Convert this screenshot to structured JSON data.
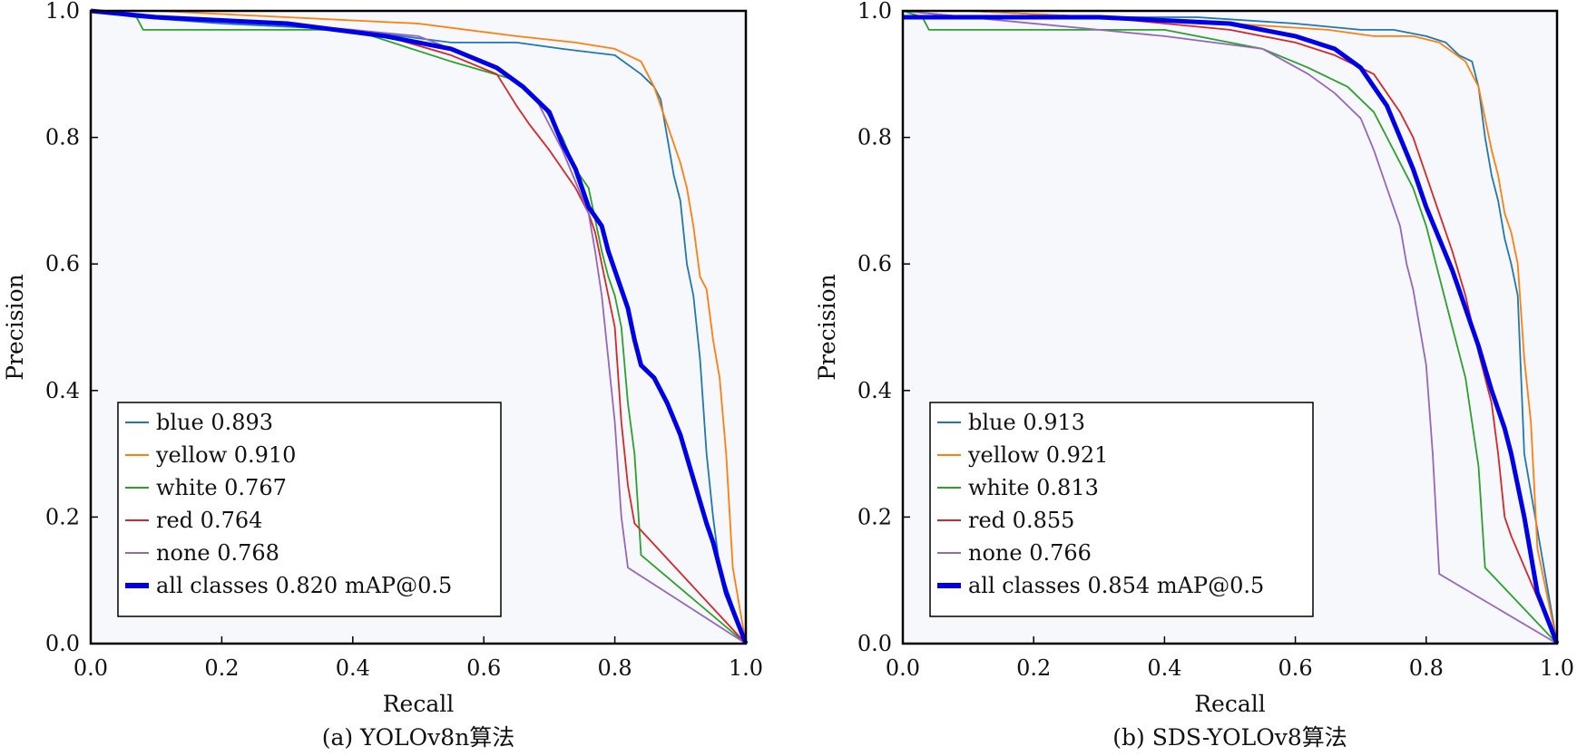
{
  "chart_data": [
    {
      "type": "line",
      "caption": "(a) YOLOv8n算法",
      "xlabel": "Recall",
      "ylabel": "Precision",
      "xlim": [
        0.0,
        1.0
      ],
      "ylim": [
        0.0,
        1.0
      ],
      "xticks": [
        "0.0",
        "0.2",
        "0.4",
        "0.6",
        "0.8",
        "1.0"
      ],
      "yticks": [
        "0.0",
        "0.2",
        "0.4",
        "0.6",
        "0.8",
        "1.0"
      ],
      "grid": false,
      "legend_position": "bottom-left",
      "series": [
        {
          "name": "blue 0.893",
          "color": "#1f77b4",
          "x": [
            0.0,
            0.07,
            0.2,
            0.4,
            0.55,
            0.65,
            0.72,
            0.8,
            0.84,
            0.86,
            0.87,
            0.88,
            0.89,
            0.9,
            0.91,
            0.92,
            0.93,
            0.94,
            0.95,
            0.96,
            1.0
          ],
          "y": [
            1.0,
            0.99,
            0.98,
            0.97,
            0.95,
            0.95,
            0.94,
            0.93,
            0.9,
            0.88,
            0.86,
            0.8,
            0.74,
            0.7,
            0.6,
            0.55,
            0.45,
            0.3,
            0.2,
            0.12,
            0.0
          ]
        },
        {
          "name": "yellow 0.910",
          "color": "#ff7f0e",
          "x": [
            0.0,
            0.1,
            0.3,
            0.5,
            0.65,
            0.74,
            0.8,
            0.84,
            0.86,
            0.88,
            0.9,
            0.91,
            0.92,
            0.93,
            0.94,
            0.95,
            0.96,
            0.97,
            0.98,
            1.0
          ],
          "y": [
            1.0,
            1.0,
            0.99,
            0.98,
            0.96,
            0.95,
            0.94,
            0.92,
            0.88,
            0.82,
            0.76,
            0.72,
            0.66,
            0.58,
            0.56,
            0.48,
            0.42,
            0.3,
            0.12,
            0.0
          ]
        },
        {
          "name": "white 0.767",
          "color": "#2ca02c",
          "x": [
            0.0,
            0.07,
            0.08,
            0.4,
            0.55,
            0.65,
            0.69,
            0.72,
            0.74,
            0.76,
            0.78,
            0.79,
            0.8,
            0.81,
            0.82,
            0.83,
            0.84,
            1.0
          ],
          "y": [
            1.0,
            0.99,
            0.97,
            0.97,
            0.92,
            0.89,
            0.85,
            0.8,
            0.75,
            0.72,
            0.62,
            0.58,
            0.55,
            0.5,
            0.38,
            0.3,
            0.14,
            0.0
          ]
        },
        {
          "name": "red 0.764",
          "color": "#d62728",
          "x": [
            0.0,
            0.1,
            0.3,
            0.45,
            0.55,
            0.62,
            0.65,
            0.67,
            0.7,
            0.72,
            0.74,
            0.76,
            0.77,
            0.78,
            0.8,
            0.81,
            0.82,
            0.83,
            1.0
          ],
          "y": [
            1.0,
            0.99,
            0.98,
            0.96,
            0.93,
            0.9,
            0.85,
            0.82,
            0.78,
            0.75,
            0.72,
            0.68,
            0.65,
            0.6,
            0.5,
            0.35,
            0.25,
            0.19,
            0.0
          ]
        },
        {
          "name": "none 0.768",
          "color": "#9467bd",
          "x": [
            0.0,
            0.1,
            0.3,
            0.5,
            0.6,
            0.65,
            0.68,
            0.72,
            0.74,
            0.76,
            0.77,
            0.78,
            0.79,
            0.8,
            0.81,
            0.82,
            1.0
          ],
          "y": [
            1.0,
            0.99,
            0.98,
            0.96,
            0.92,
            0.89,
            0.86,
            0.78,
            0.73,
            0.68,
            0.62,
            0.55,
            0.45,
            0.35,
            0.2,
            0.12,
            0.0
          ]
        },
        {
          "name": "all classes 0.820 mAP@0.5",
          "color": "#0000e6",
          "thick": true,
          "x": [
            0.0,
            0.1,
            0.3,
            0.45,
            0.55,
            0.62,
            0.66,
            0.7,
            0.72,
            0.74,
            0.76,
            0.78,
            0.79,
            0.8,
            0.82,
            0.83,
            0.84,
            0.86,
            0.88,
            0.9,
            0.92,
            0.94,
            0.95,
            0.96,
            0.97,
            1.0
          ],
          "y": [
            1.0,
            0.99,
            0.98,
            0.96,
            0.94,
            0.91,
            0.88,
            0.84,
            0.79,
            0.75,
            0.69,
            0.66,
            0.62,
            0.59,
            0.53,
            0.48,
            0.44,
            0.42,
            0.38,
            0.33,
            0.26,
            0.19,
            0.16,
            0.12,
            0.08,
            0.0
          ]
        }
      ]
    },
    {
      "type": "line",
      "caption": "(b) SDS-YOLOv8算法",
      "xlabel": "Recall",
      "ylabel": "Precision",
      "xlim": [
        0.0,
        1.0
      ],
      "ylim": [
        0.0,
        1.0
      ],
      "xticks": [
        "0.0",
        "0.2",
        "0.4",
        "0.6",
        "0.8",
        "1.0"
      ],
      "yticks": [
        "0.0",
        "0.2",
        "0.4",
        "0.6",
        "0.8",
        "1.0"
      ],
      "grid": false,
      "legend_position": "bottom-left",
      "series": [
        {
          "name": "blue 0.913",
          "color": "#1f77b4",
          "x": [
            0.0,
            0.1,
            0.3,
            0.45,
            0.6,
            0.7,
            0.75,
            0.8,
            0.83,
            0.85,
            0.87,
            0.88,
            0.89,
            0.9,
            0.91,
            0.92,
            0.93,
            0.94,
            0.95,
            1.0
          ],
          "y": [
            1.0,
            1.0,
            0.99,
            0.99,
            0.98,
            0.97,
            0.97,
            0.96,
            0.95,
            0.93,
            0.92,
            0.88,
            0.8,
            0.74,
            0.7,
            0.64,
            0.6,
            0.55,
            0.3,
            0.0
          ]
        },
        {
          "name": "yellow 0.921",
          "color": "#ff7f0e",
          "x": [
            0.0,
            0.1,
            0.3,
            0.5,
            0.65,
            0.72,
            0.78,
            0.82,
            0.86,
            0.88,
            0.89,
            0.9,
            0.91,
            0.92,
            0.93,
            0.94,
            0.95,
            0.96,
            0.97,
            1.0
          ],
          "y": [
            1.0,
            1.0,
            0.99,
            0.98,
            0.97,
            0.96,
            0.96,
            0.95,
            0.92,
            0.88,
            0.83,
            0.78,
            0.74,
            0.68,
            0.65,
            0.6,
            0.45,
            0.35,
            0.15,
            0.0
          ]
        },
        {
          "name": "white 0.813",
          "color": "#2ca02c",
          "x": [
            0.0,
            0.03,
            0.04,
            0.4,
            0.55,
            0.62,
            0.68,
            0.72,
            0.76,
            0.78,
            0.8,
            0.82,
            0.84,
            0.86,
            0.87,
            0.88,
            0.89,
            1.0
          ],
          "y": [
            1.0,
            0.99,
            0.97,
            0.97,
            0.94,
            0.91,
            0.88,
            0.84,
            0.76,
            0.72,
            0.66,
            0.58,
            0.5,
            0.42,
            0.35,
            0.28,
            0.12,
            0.0
          ]
        },
        {
          "name": "red 0.855",
          "color": "#d62728",
          "x": [
            0.0,
            0.1,
            0.3,
            0.5,
            0.6,
            0.66,
            0.7,
            0.72,
            0.76,
            0.78,
            0.8,
            0.82,
            0.84,
            0.86,
            0.88,
            0.9,
            0.91,
            0.92,
            0.93,
            1.0
          ],
          "y": [
            1.0,
            0.99,
            0.99,
            0.97,
            0.95,
            0.93,
            0.91,
            0.9,
            0.84,
            0.8,
            0.74,
            0.68,
            0.62,
            0.55,
            0.46,
            0.38,
            0.3,
            0.2,
            0.17,
            0.0
          ]
        },
        {
          "name": "none 0.766",
          "color": "#9467bd",
          "x": [
            0.0,
            0.1,
            0.3,
            0.4,
            0.55,
            0.62,
            0.66,
            0.7,
            0.72,
            0.74,
            0.76,
            0.77,
            0.78,
            0.79,
            0.8,
            0.81,
            0.82,
            1.0
          ],
          "y": [
            1.0,
            0.99,
            0.97,
            0.96,
            0.94,
            0.9,
            0.87,
            0.83,
            0.78,
            0.72,
            0.66,
            0.6,
            0.56,
            0.5,
            0.44,
            0.3,
            0.11,
            0.0
          ]
        },
        {
          "name": "all classes 0.854 mAP@0.5",
          "color": "#0000e6",
          "thick": true,
          "x": [
            0.0,
            0.1,
            0.3,
            0.5,
            0.6,
            0.66,
            0.7,
            0.72,
            0.74,
            0.76,
            0.78,
            0.8,
            0.82,
            0.84,
            0.86,
            0.88,
            0.9,
            0.92,
            0.93,
            0.94,
            0.95,
            0.96,
            0.97,
            1.0
          ],
          "y": [
            0.99,
            0.99,
            0.99,
            0.98,
            0.96,
            0.94,
            0.91,
            0.88,
            0.85,
            0.8,
            0.75,
            0.69,
            0.64,
            0.59,
            0.53,
            0.47,
            0.4,
            0.34,
            0.3,
            0.25,
            0.2,
            0.14,
            0.08,
            0.0
          ]
        }
      ]
    }
  ]
}
